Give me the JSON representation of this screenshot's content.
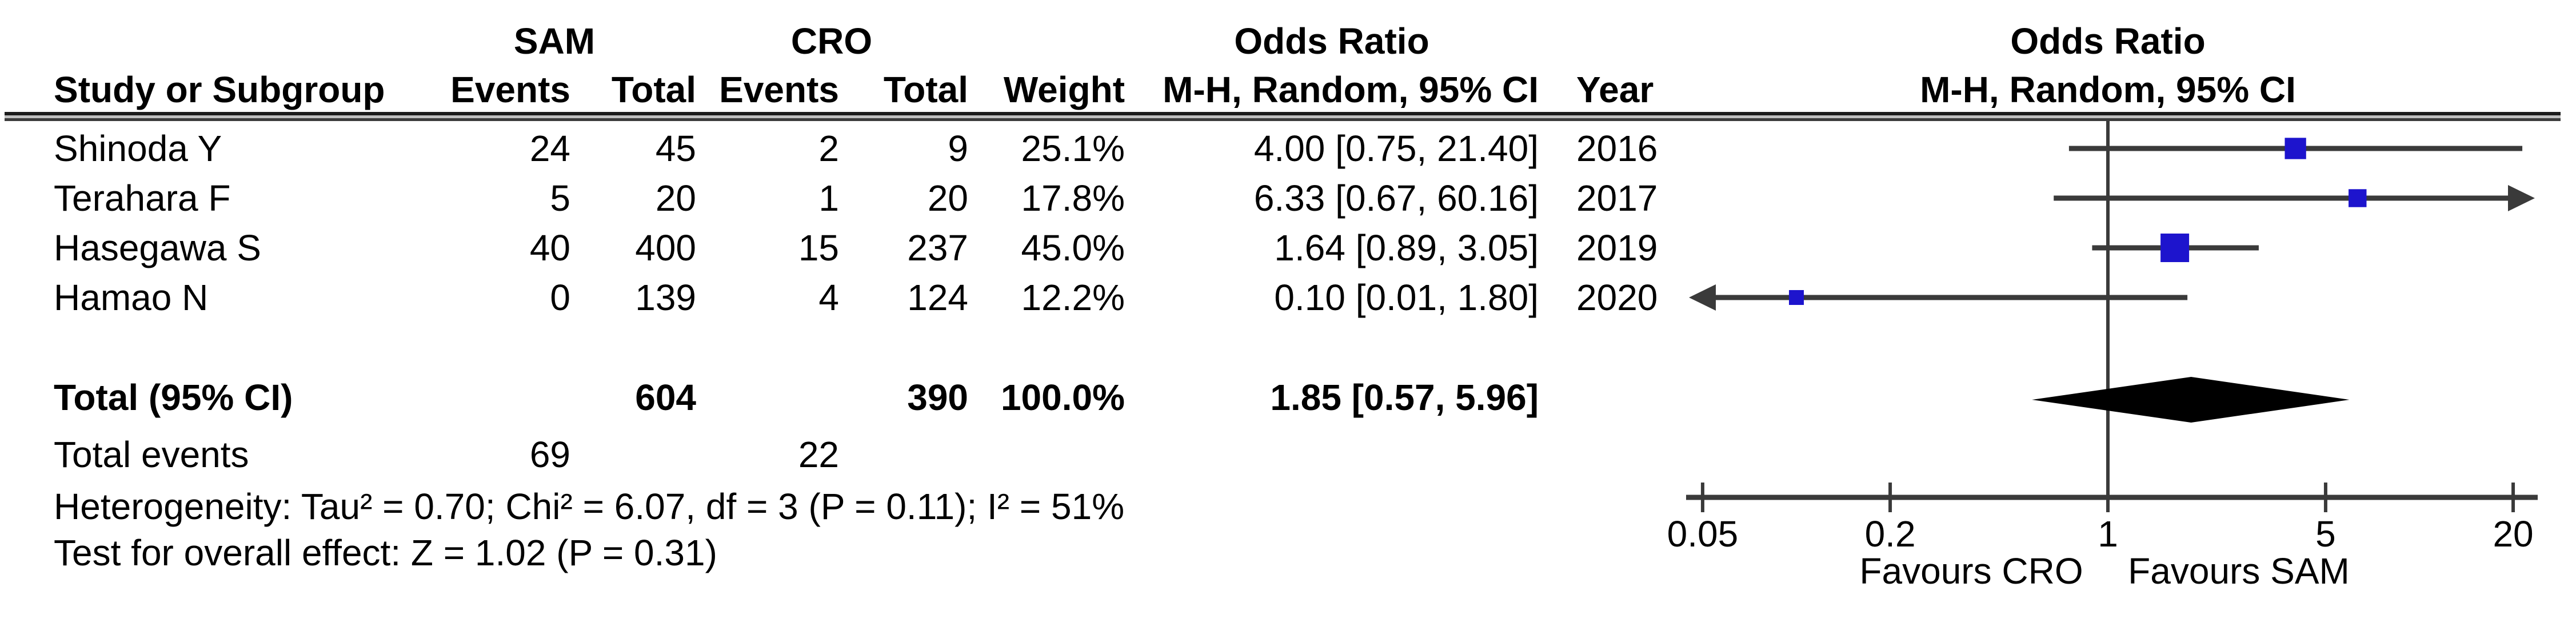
{
  "table": {
    "headers": {
      "sam": "SAM",
      "cro": "CRO",
      "or_table": "Odds Ratio",
      "or_plot": "Odds Ratio",
      "study": "Study or Subgroup",
      "events": "Events",
      "total": "Total",
      "weight": "Weight",
      "mh": "M-H, Random, 95% CI",
      "mh_plot": "M-H, Random, 95% CI",
      "year": "Year"
    },
    "rows": [
      {
        "study": "Shinoda Y",
        "sam_events": "24",
        "sam_total": "45",
        "cro_events": "2",
        "cro_total": "9",
        "weight": "25.1%",
        "or_ci": "4.00 [0.75, 21.40]",
        "year": "2016"
      },
      {
        "study": "Terahara F",
        "sam_events": "5",
        "sam_total": "20",
        "cro_events": "1",
        "cro_total": "20",
        "weight": "17.8%",
        "or_ci": "6.33 [0.67, 60.16]",
        "year": "2017"
      },
      {
        "study": "Hasegawa S",
        "sam_events": "40",
        "sam_total": "400",
        "cro_events": "15",
        "cro_total": "237",
        "weight": "45.0%",
        "or_ci": "1.64 [0.89, 3.05]",
        "year": "2019"
      },
      {
        "study": "Hamao N",
        "sam_events": "0",
        "sam_total": "139",
        "cro_events": "4",
        "cro_total": "124",
        "weight": "12.2%",
        "or_ci": "0.10 [0.01, 1.80]",
        "year": "2020"
      }
    ],
    "totals": {
      "label": "Total (95% CI)",
      "sam_total": "604",
      "cro_total": "390",
      "weight": "100.0%",
      "or_ci": "1.85 [0.57, 5.96]"
    },
    "total_events": {
      "label": "Total events",
      "sam": "69",
      "cro": "22"
    },
    "heterogeneity": "Heterogeneity: Tau² = 0.70; Chi² = 6.07, df = 3 (P = 0.11); I² = 51%",
    "overall_effect": "Test for overall effect: Z = 1.02 (P = 0.31)"
  },
  "chart_data": {
    "type": "forest",
    "x_scale": "log",
    "axis_ticks": [
      0.05,
      0.2,
      1,
      5,
      20
    ],
    "tick_labels": [
      "0.05",
      "0.2",
      "1",
      "5",
      "20"
    ],
    "axis_range": [
      0.05,
      20
    ],
    "null_line": 1,
    "effect_measure": "Odds Ratio, M-H, Random, 95% CI",
    "studies": [
      {
        "name": "Shinoda Y",
        "or": 4.0,
        "ci_low": 0.75,
        "ci_high": 21.4,
        "weight": 25.1,
        "year": 2016
      },
      {
        "name": "Terahara F",
        "or": 6.33,
        "ci_low": 0.67,
        "ci_high": 60.16,
        "weight": 17.8,
        "year": 2017
      },
      {
        "name": "Hasegawa S",
        "or": 1.64,
        "ci_low": 0.89,
        "ci_high": 3.05,
        "weight": 45.0,
        "year": 2019
      },
      {
        "name": "Hamao N",
        "or": 0.1,
        "ci_low": 0.01,
        "ci_high": 1.8,
        "weight": 12.2,
        "year": 2020
      }
    ],
    "total": {
      "or": 1.85,
      "ci_low": 0.57,
      "ci_high": 5.96
    },
    "favours_left": "Favours CRO",
    "favours_right": "Favours SAM"
  },
  "colors": {
    "square": "#1d14cd",
    "line": "#3a3a3a",
    "diamond": "#000000",
    "text": "#000000"
  }
}
